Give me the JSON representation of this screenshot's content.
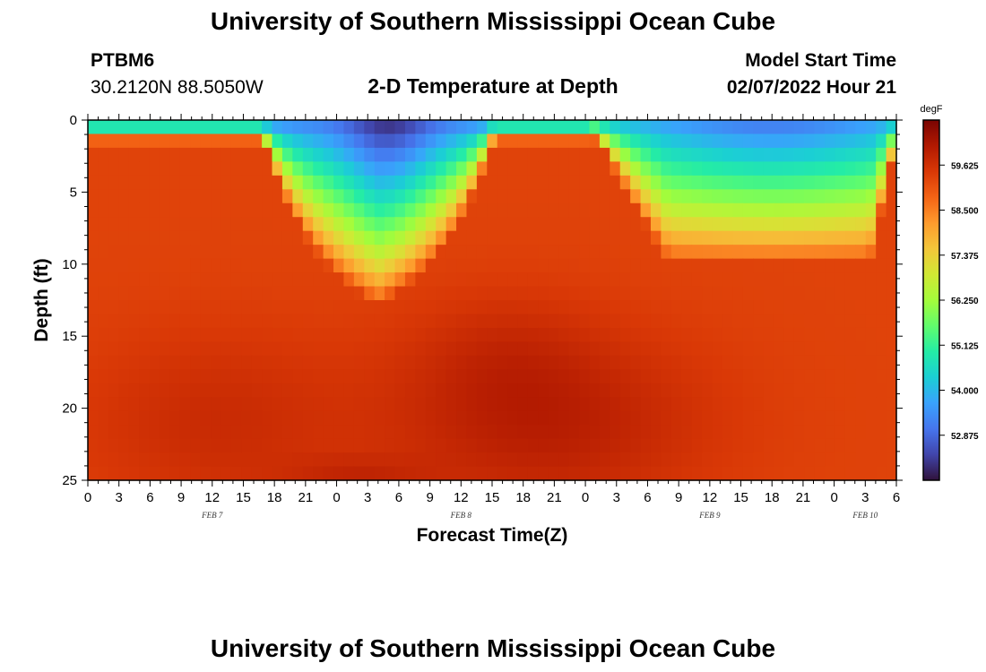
{
  "header": {
    "main_title": "University of Southern Mississippi Ocean Cube",
    "station_id": "PTBM6",
    "station_coords": "30.2120N  88.5050W",
    "sub_title": "2-D Temperature at Depth",
    "model_start_label": "Model Start Time",
    "model_start_value": "02/07/2022 Hour 21",
    "footer_title": "University of Southern Mississippi Ocean Cube"
  },
  "chart_data": {
    "type": "heatmap",
    "title": "2-D Temperature at Depth",
    "xlabel": "Forecast Time(Z)",
    "ylabel": "Depth (ft)",
    "y_axis": {
      "range": [
        0,
        25
      ],
      "inverted": true,
      "ticks": [
        0,
        5,
        10,
        15,
        20,
        25
      ]
    },
    "x_axis": {
      "range_hours": [
        0,
        78
      ],
      "tick_labels": [
        "0",
        "3",
        "6",
        "9",
        "12",
        "15",
        "18",
        "21",
        "0",
        "3",
        "6",
        "9",
        "12",
        "15",
        "18",
        "21",
        "0",
        "3",
        "6",
        "9",
        "12",
        "15",
        "18",
        "21",
        "0",
        "3",
        "6"
      ],
      "date_labels": [
        {
          "text": "FEB 7",
          "hour": 12
        },
        {
          "text": "FEB 8",
          "hour": 36
        },
        {
          "text": "FEB 9",
          "hour": 60
        },
        {
          "text": "FEB 10",
          "hour": 75
        }
      ]
    },
    "colorbar": {
      "units": "degF",
      "range": [
        51.75,
        60.75
      ],
      "tick_labels": [
        "59.625",
        "58.500",
        "57.375",
        "56.250",
        "55.125",
        "54.000",
        "52.875"
      ],
      "tick_values": [
        59.625,
        58.5,
        57.375,
        56.25,
        55.125,
        54.0,
        52.875
      ],
      "colors": [
        "#30123b",
        "#4145ab",
        "#4675ed",
        "#39a2fc",
        "#1bcfd4",
        "#24eca6",
        "#61fc6c",
        "#a4fc3b",
        "#d1e834",
        "#f3c63a",
        "#fe9b2d",
        "#f36315",
        "#d93806",
        "#b11901",
        "#7a0402"
      ]
    },
    "grid": false,
    "grid_size": {
      "columns": 79,
      "rows": 26
    }
  }
}
